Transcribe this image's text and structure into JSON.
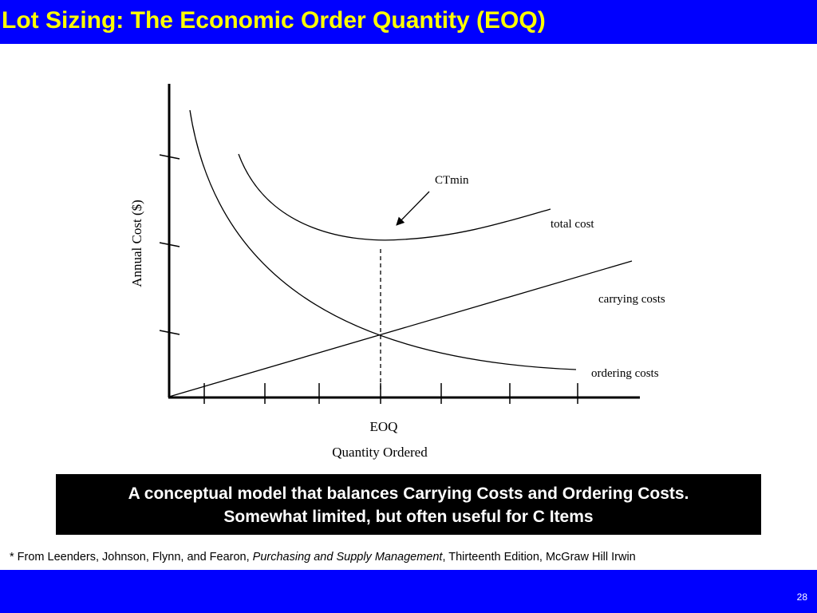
{
  "header": {
    "title": "Lot Sizing: The Economic Order Quantity (EOQ)"
  },
  "diagram": {
    "y_axis_label": "Annual Cost ($)",
    "x_axis_label": "Quantity Ordered",
    "x_marker_label": "EOQ",
    "annotation": "CTmin",
    "curve_labels": [
      "total cost",
      "carrying costs",
      "ordering costs"
    ]
  },
  "callout": {
    "lines": [
      "A conceptual model that balances Carrying Costs and Ordering Costs.",
      "Somewhat limited, but often useful for C Items"
    ]
  },
  "footnote": {
    "prefix": "* From Leenders, Johnson, Flynn, and Fearon,",
    "book": "Purchasing and Supply Management",
    "suffix": ", Thirteenth Edition, McGraw Hill Irwin"
  },
  "footer": {
    "page_number": "28"
  }
}
